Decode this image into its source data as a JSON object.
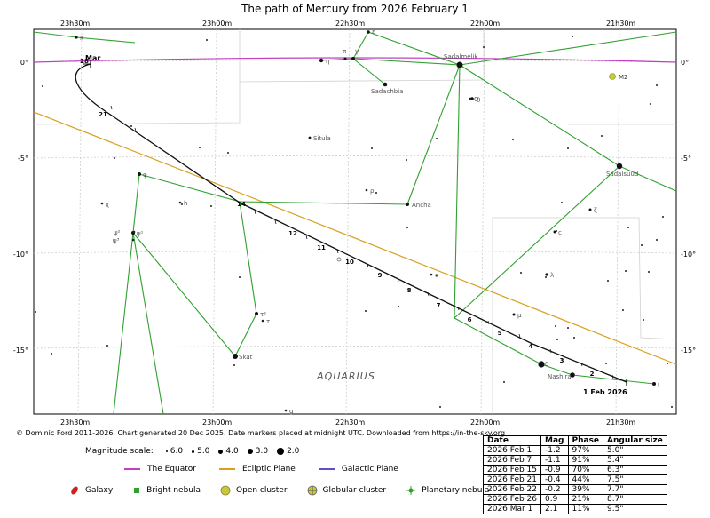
{
  "chart_data": {
    "type": "scatter",
    "title": "The path of Mercury from 2026 February 1",
    "constellation_label": "AQUARIUS",
    "x_axis": {
      "unit": "right ascension",
      "ticks": [
        "23h30m",
        "23h00m",
        "22h30m",
        "22h00m",
        "21h30m"
      ]
    },
    "y_axis": {
      "unit": "declination",
      "ticks": [
        "0°",
        "-5°",
        "-10°",
        "-15°"
      ]
    },
    "grid": true,
    "mercury_path": {
      "start_label": "1 Feb 2026",
      "end_label": "Mar",
      "day_markers": [
        "2",
        "3",
        "4",
        "5",
        "6",
        "7",
        "8",
        "9",
        "10",
        "11",
        "12",
        "14",
        "21",
        "28"
      ]
    },
    "stars": [
      {
        "name": "Sadalmelik",
        "magnitude": 3.0
      },
      {
        "name": "Sadalsuud",
        "magnitude": 2.9
      },
      {
        "name": "Sadachbia",
        "magnitude": 3.8
      },
      {
        "name": "Ancha",
        "magnitude": 4.2
      },
      {
        "name": "Situla",
        "magnitude": 5.0
      },
      {
        "name": "Skat",
        "magnitude": 3.3
      },
      {
        "name": "Nashira",
        "magnitude": 3.7
      },
      {
        "name": "ζ",
        "magnitude": 4.3
      },
      {
        "name": "η",
        "magnitude": 4.0
      },
      {
        "name": "π",
        "magnitude": 4.7
      },
      {
        "name": "γ",
        "magnitude": 3.8
      },
      {
        "name": "θ",
        "magnitude": 4.2
      },
      {
        "name": "λ",
        "magnitude": 3.7
      },
      {
        "name": "τ²",
        "magnitude": 4.0
      },
      {
        "name": "ψ¹",
        "magnitude": 4.2
      },
      {
        "name": "φ",
        "magnitude": 4.2
      },
      {
        "name": "ι",
        "magnitude": 4.3
      },
      {
        "name": "δ",
        "magnitude": 2.9
      },
      {
        "name": "ε",
        "magnitude": 3.8
      },
      {
        "name": "μ",
        "magnitude": 4.7
      },
      {
        "name": "ξ",
        "magnitude": 4.7
      },
      {
        "name": "c",
        "magnitude": 5.0
      }
    ],
    "deep_sky": [
      {
        "name": "M2",
        "type": "Globular cluster"
      }
    ]
  },
  "credit": "© Dominic Ford 2011-2026. Chart generated 20 Dec 2025. Date markers placed at midnight UTC. Downloaded from https://in-the-sky.org",
  "magnitude_scale": {
    "label": "Magnitude scale:",
    "items": [
      "6.0",
      "5.0",
      "4.0",
      "3.0",
      "2.0"
    ]
  },
  "line_legend": [
    {
      "label": "The Equator",
      "color": "#c040c0"
    },
    {
      "label": "Ecliptic Plane",
      "color": "#d8a020"
    },
    {
      "label": "Galactic Plane",
      "color": "#6050c0"
    }
  ],
  "object_legend": [
    {
      "label": "Galaxy",
      "icon": "galaxy-icon"
    },
    {
      "label": "Bright nebula",
      "icon": "bright-nebula-icon"
    },
    {
      "label": "Open cluster",
      "icon": "open-cluster-icon"
    },
    {
      "label": "Globular cluster",
      "icon": "globular-cluster-icon"
    },
    {
      "label": "Planetary nebula",
      "icon": "planetary-nebula-icon"
    }
  ],
  "ephemeris": {
    "headers": [
      "Date",
      "Mag",
      "Phase",
      "Angular size"
    ],
    "rows": [
      [
        "2026 Feb 1",
        "-1.2",
        "97%",
        "5.0\""
      ],
      [
        "2026 Feb 7",
        "-1.1",
        "91%",
        "5.4\""
      ],
      [
        "2026 Feb 15",
        "-0.9",
        "70%",
        "6.3\""
      ],
      [
        "2026 Feb 21",
        "-0.4",
        "44%",
        "7.5\""
      ],
      [
        "2026 Feb 22",
        "-0.2",
        "39%",
        "7.7\""
      ],
      [
        "2026 Feb 26",
        "0.9",
        "21%",
        "8.7\""
      ],
      [
        "2026 Mar 1",
        "2.1",
        "11%",
        "9.5\""
      ]
    ]
  }
}
